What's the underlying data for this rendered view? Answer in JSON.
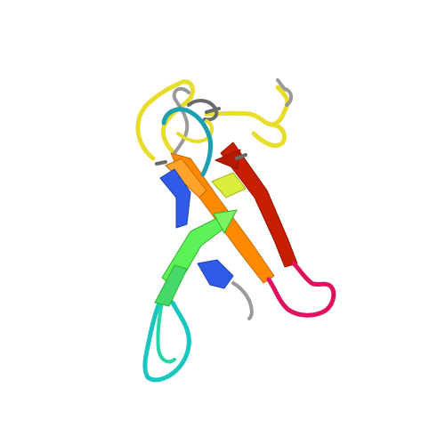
{
  "image": {
    "subject": "protein-ribbon-cartoon",
    "background_color": "#ffffff",
    "palette": {
      "blue": "#2f5be8",
      "cyan": "#19c6c0",
      "green": "#5ef25a",
      "yellow": "#e8dd2a",
      "orange": "#ff8a00",
      "red": "#c81e00",
      "magenta": "#e0115f",
      "grey": "#9a9a9a",
      "dark_grey": "#6a6a6a"
    }
  }
}
